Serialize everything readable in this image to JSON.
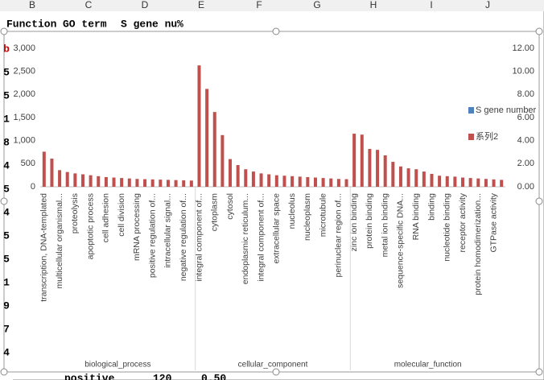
{
  "sheet": {
    "columns": [
      "B",
      "C",
      "D",
      "E",
      "F",
      "G",
      "H",
      "I",
      "J"
    ],
    "header_row": [
      "Function",
      "GO term",
      "S gene nu",
      "%"
    ],
    "row_cells": [
      "b",
      "5",
      "5",
      "1",
      "8",
      "4",
      "5",
      "4",
      "5",
      "5",
      "1",
      "9",
      "7",
      "4"
    ],
    "bottom_row": [
      "positive",
      "120",
      "0.50"
    ]
  },
  "chart_data": {
    "type": "bar",
    "categories": [
      "transcription, DNA-templated",
      null,
      "multicellular organismal...",
      null,
      "proteolysis",
      null,
      "apoptotic process",
      null,
      "cell adhesion",
      null,
      "cell division",
      null,
      "mRNA processing",
      null,
      "positive regulation of...",
      null,
      "intracellular signal...",
      null,
      "negative regulation of...",
      null,
      "integral component of...",
      null,
      "cytoplasm",
      null,
      "cytosol",
      null,
      "endoplasmic reticulum...",
      null,
      "integral component of...",
      null,
      "extracellular space",
      null,
      "nucleolus",
      null,
      "nucleoplasm",
      null,
      "microtubule",
      null,
      "perinuclear region of...",
      null,
      "zinc ion binding",
      null,
      "protein binding",
      null,
      "metal ion binding",
      null,
      "sequence-specific DNA...",
      null,
      "RNA binding",
      null,
      "binding",
      null,
      "nucleotide binding",
      null,
      "receptor activity",
      null,
      "protein homodimerization...",
      null,
      "GTPase activity",
      null
    ],
    "groups": [
      "biological_process",
      "cellular_component",
      "molecular_function"
    ],
    "series": [
      {
        "name": "S gene number",
        "color": "#4f81bd",
        "axis": "y2",
        "values": [
          null,
          null,
          null,
          null,
          null,
          null,
          null,
          null,
          null,
          null,
          null,
          null,
          null,
          null,
          null,
          null,
          null,
          null,
          null,
          null,
          null,
          null,
          null,
          null,
          null,
          null,
          null,
          null,
          null,
          null,
          null,
          null,
          null,
          null,
          null,
          null,
          null,
          null,
          null,
          null,
          null,
          null,
          null,
          null,
          null,
          null,
          null,
          null,
          null,
          null,
          null,
          null,
          null,
          null,
          null,
          null,
          null,
          null,
          null,
          null
        ]
      },
      {
        "name": "系列2",
        "color": "#c0504d",
        "values": [
          760,
          610,
          360,
          320,
          290,
          270,
          250,
          230,
          210,
          200,
          190,
          180,
          170,
          165,
          160,
          155,
          150,
          145,
          140,
          135,
          2630,
          2120,
          1620,
          1120,
          600,
          470,
          380,
          330,
          290,
          270,
          250,
          240,
          230,
          220,
          210,
          200,
          190,
          180,
          170,
          165,
          1150,
          1130,
          820,
          800,
          680,
          540,
          440,
          400,
          380,
          330,
          280,
          240,
          230,
          220,
          200,
          190,
          180,
          170,
          160,
          150
        ]
      }
    ],
    "ylim": [
      0,
      3000
    ],
    "yticks": [
      0,
      500,
      {
        "value": 1000,
        "label": "1,000"
      },
      {
        "value": 1500,
        "label": "1,500"
      },
      {
        "value": 2000,
        "label": "2,000"
      },
      {
        "value": 2500,
        "label": "2,500"
      },
      {
        "value": 3000,
        "label": "3,000"
      }
    ],
    "y2lim": [
      0,
      12
    ],
    "y2ticks": [
      {
        "value": 0,
        "label": "0.00"
      },
      {
        "value": 2,
        "label": "2.00"
      },
      {
        "value": 4,
        "label": "4.00"
      },
      {
        "value": 6,
        "label": "6.00"
      },
      {
        "value": 8,
        "label": "8.00"
      },
      {
        "value": 10,
        "label": "10.00"
      },
      {
        "value": 12,
        "label": "12.00"
      }
    ],
    "legend": "right"
  }
}
